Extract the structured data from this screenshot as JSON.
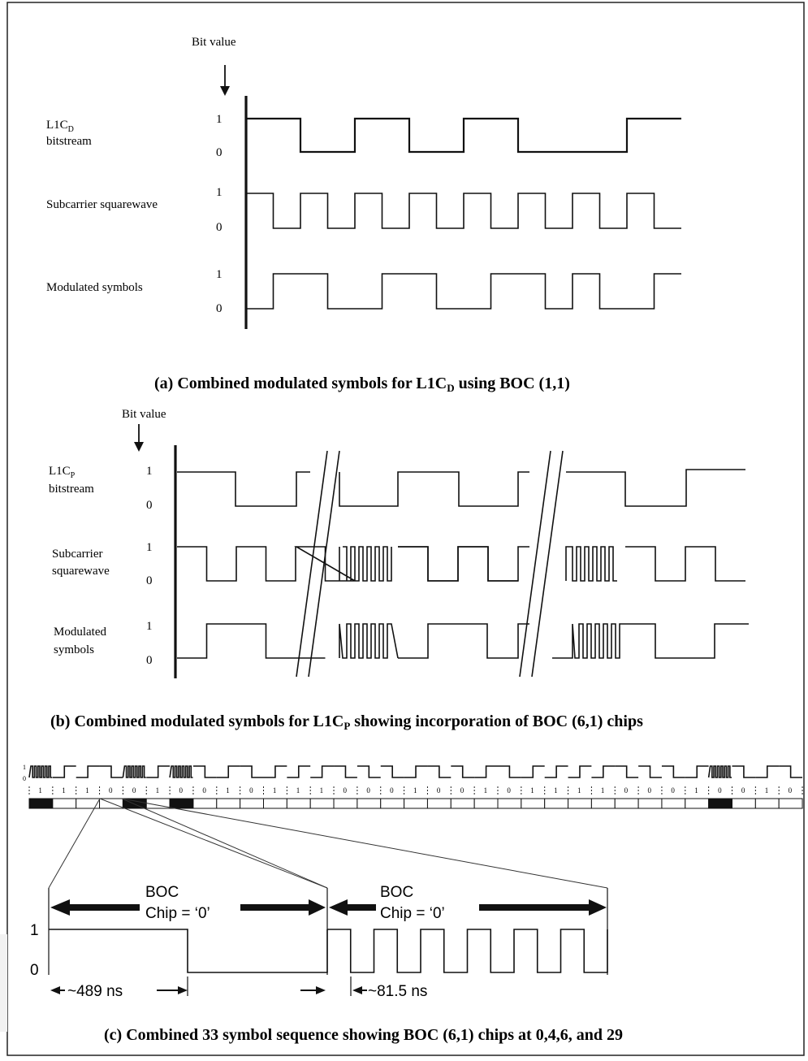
{
  "part_a": {
    "bit_value_label": "Bit value",
    "rows": [
      {
        "label_main": "L1C",
        "label_sub": "D",
        "label_line2": "bitstream",
        "hi": "1",
        "lo": "0"
      },
      {
        "label_main": "Subcarrier squarewave",
        "label_sub": "",
        "label_line2": "",
        "hi": "1",
        "lo": "0"
      },
      {
        "label_main": "Modulated symbols",
        "label_sub": "",
        "label_line2": "",
        "hi": "1",
        "lo": "0"
      }
    ],
    "bits": [
      1,
      0,
      1,
      0,
      1,
      0,
      0,
      1
    ],
    "caption_pre": "(a) Combined modulated symbols for L1C",
    "caption_sub": "D",
    "caption_post": " using BOC (1,1)"
  },
  "part_b": {
    "bit_value_label": "Bit value",
    "rows": [
      {
        "label_main": "L1C",
        "label_sub": "P",
        "label_line2": "bitstream",
        "hi": "1",
        "lo": "0"
      },
      {
        "label_main": "Subcarrier",
        "label_sub": "",
        "label_line2": "squarewave",
        "hi": "1",
        "lo": "0"
      },
      {
        "label_main": "Modulated",
        "label_sub": "",
        "label_line2": "symbols",
        "hi": "1",
        "lo": "0"
      }
    ],
    "caption_pre": "(b) Combined modulated symbols for L1C",
    "caption_sub": "P",
    "caption_post": " showing incorporation of BOC (6,1) chips"
  },
  "part_c": {
    "symbols": [
      1,
      1,
      1,
      0,
      0,
      1,
      0,
      0,
      1,
      0,
      1,
      1,
      1,
      0,
      0,
      0,
      1,
      0,
      0,
      1,
      0,
      1,
      1,
      1,
      1,
      0,
      0,
      0,
      1,
      0,
      0,
      1,
      0
    ],
    "boc_chips": [
      0,
      4,
      6,
      29
    ],
    "tick_top": "1",
    "tick_bottom": "0",
    "boc_label": "BOC",
    "chip_label_left": "Chip = ‘0’",
    "chip_label_right": "Chip = ‘0’",
    "axis_hi": "1",
    "axis_lo": "0",
    "dur_left": "~489 ns",
    "dur_right": "~81.5 ns",
    "caption": "(c) Combined 33 symbol sequence showing BOC (6,1) chips at 0,4,6, and 29"
  }
}
